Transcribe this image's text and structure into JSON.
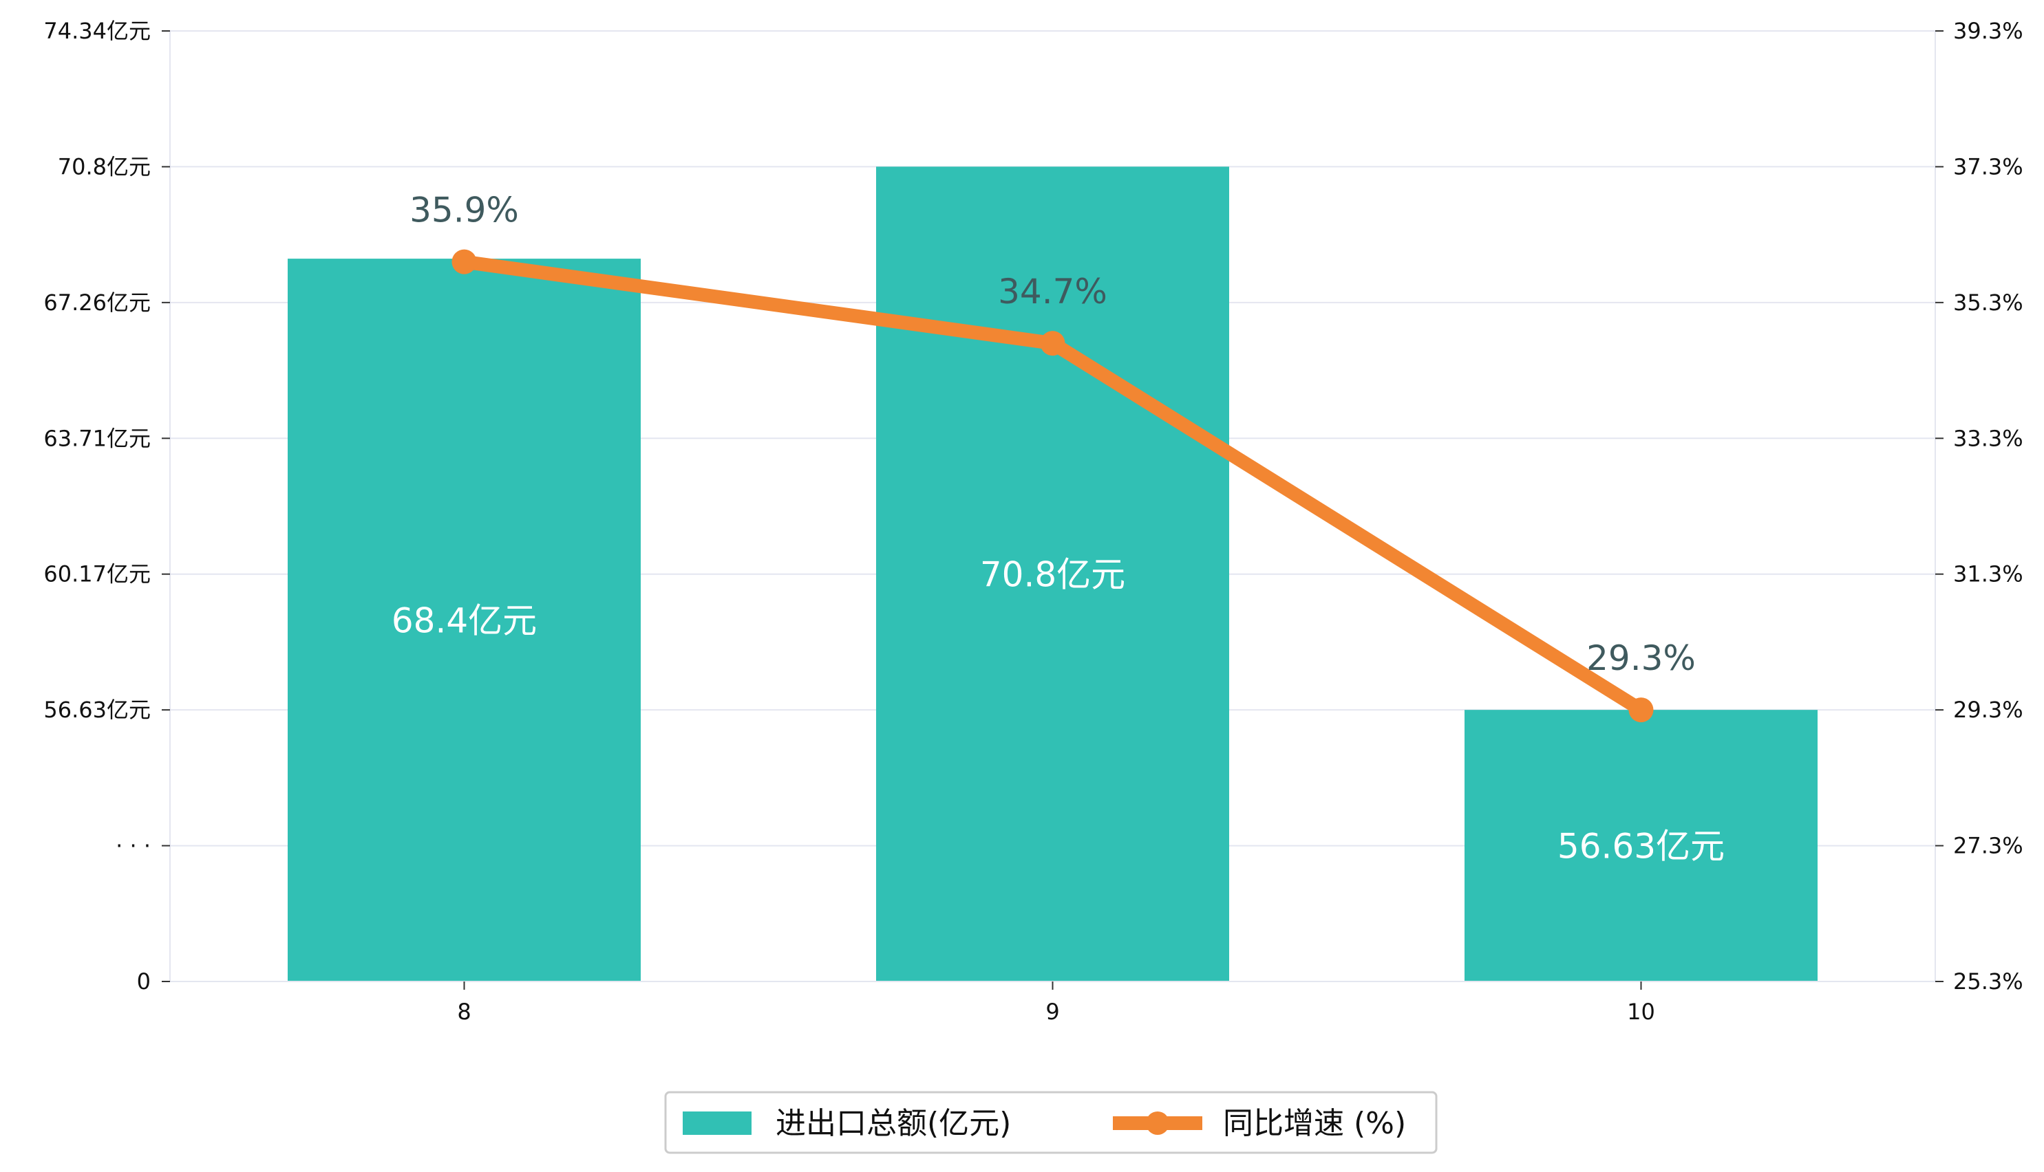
{
  "chart_data": {
    "type": "bar",
    "categories": [
      "8",
      "9",
      "10"
    ],
    "series": [
      {
        "name": "进出口总额(亿元)",
        "type": "bar",
        "axis": "left",
        "values": [
          68.4,
          70.8,
          56.63
        ],
        "labels": [
          "68.4亿元",
          "70.8亿元",
          "56.63亿元"
        ],
        "color": "#31c0b4"
      },
      {
        "name": "同比增速 (%)",
        "type": "line",
        "axis": "right",
        "values": [
          35.9,
          34.7,
          29.3
        ],
        "labels": [
          "35.9%",
          "34.7%",
          "29.3%"
        ],
        "color": "#f28632"
      }
    ],
    "y_left": {
      "ticks": [
        "0",
        "· · ·",
        "56.63亿元",
        "60.17亿元",
        "63.71亿元",
        "67.26亿元",
        "70.8亿元",
        "74.34亿元"
      ],
      "broken": true,
      "ylim_upper": [
        56.63,
        74.34
      ]
    },
    "y_right": {
      "ticks": [
        "25.3%",
        "27.3%",
        "29.3%",
        "31.3%",
        "33.3%",
        "35.3%",
        "37.3%",
        "39.3%"
      ],
      "ylim": [
        25.3,
        39.3
      ]
    },
    "grid": true,
    "legend_position": "bottom-center"
  }
}
